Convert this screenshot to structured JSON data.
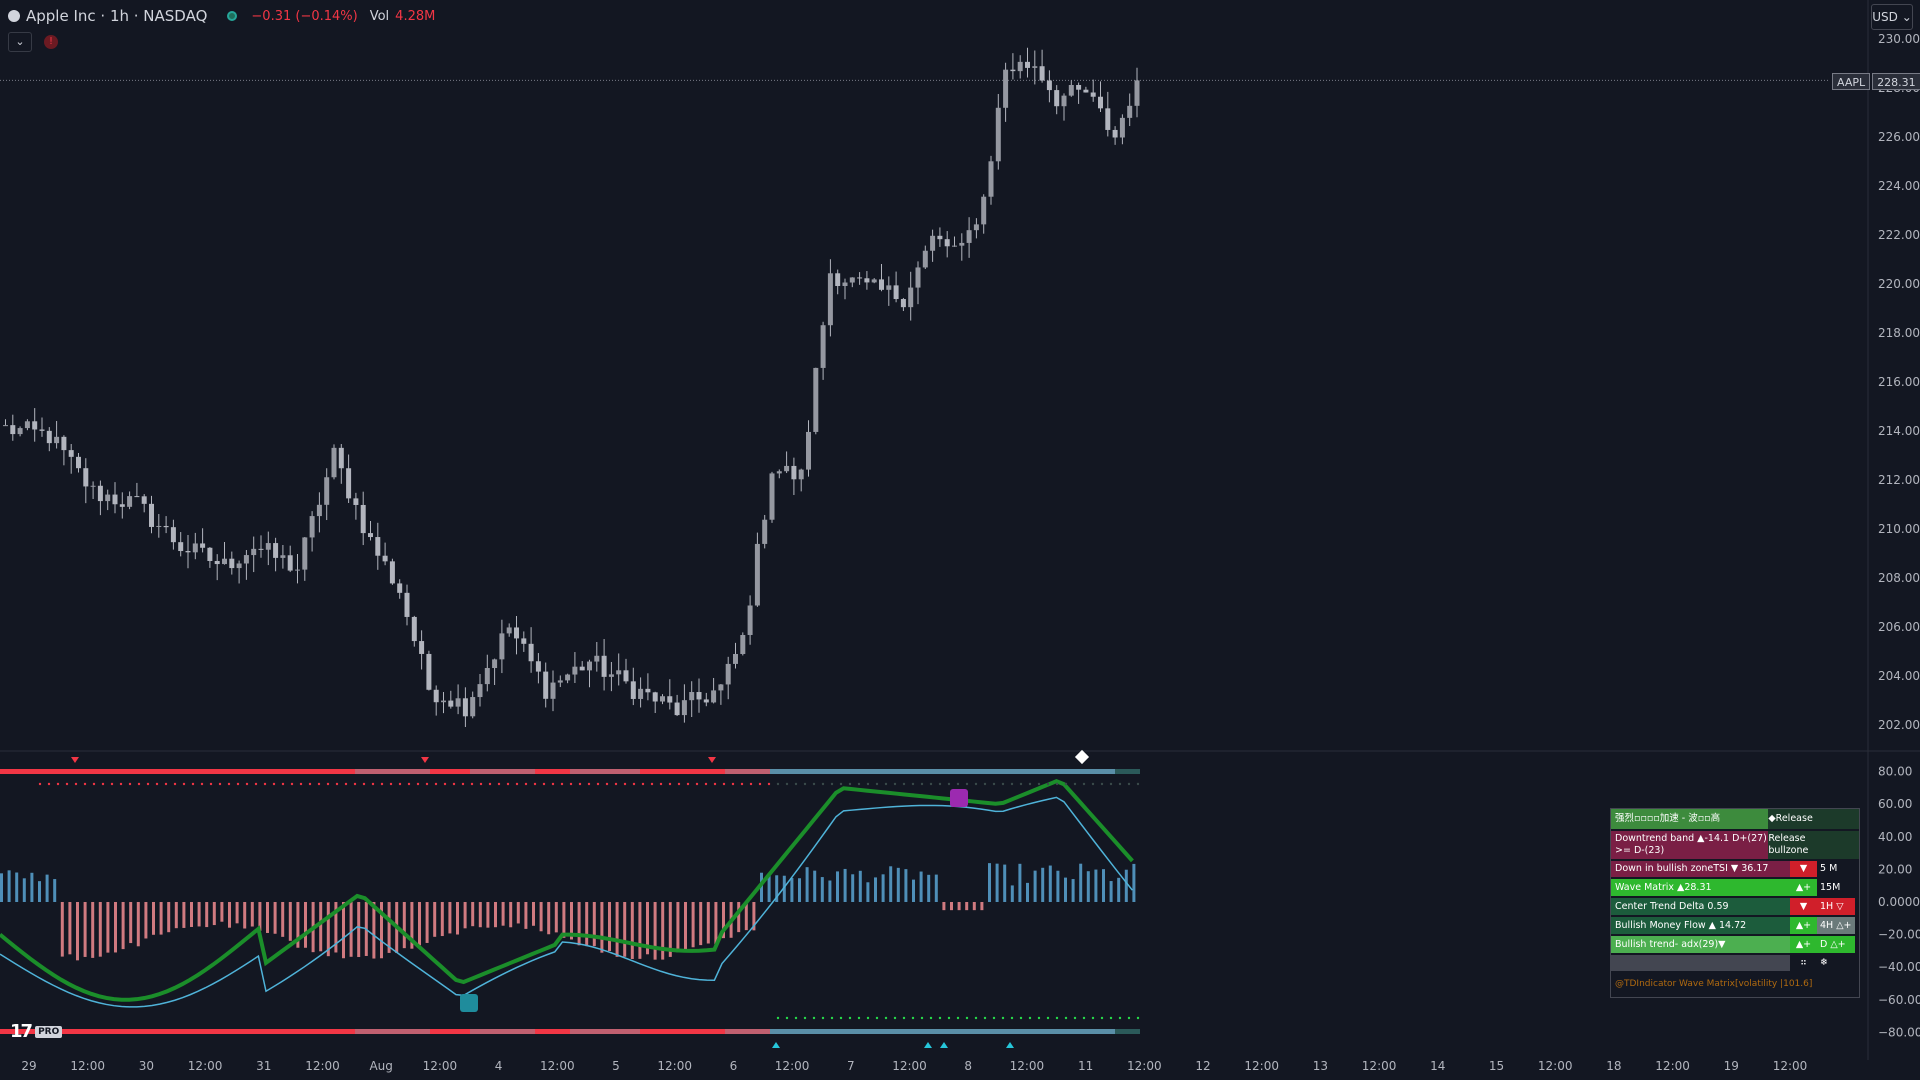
{
  "header": {
    "symbol": "Apple Inc · 1h · NASDAQ",
    "change": "−0.31 (−0.14%)",
    "vol_label": "Vol",
    "vol_value": "4.28M"
  },
  "controls": {
    "collapse_icon": "chevron-down-icon",
    "warning_icon": "!"
  },
  "currency": "USD ⌄",
  "last_price": {
    "ticker": "AAPL",
    "value": "228.31"
  },
  "logo": {
    "mark": "17",
    "badge": "PRO"
  },
  "chart_data": {
    "type": "candlestick",
    "title": "Apple Inc · 1h · NASDAQ",
    "price_axis": {
      "ticks": [
        "230.00",
        "228.00",
        "226.00",
        "224.00",
        "222.00",
        "220.00",
        "218.00",
        "216.00",
        "214.00",
        "212.00",
        "210.00",
        "208.00",
        "206.00",
        "204.00",
        "202.00"
      ],
      "range": [
        201.0,
        231.0
      ]
    },
    "oscillator_axis": {
      "ticks": [
        "80.00",
        "60.00",
        "40.00",
        "20.00",
        "0.0000",
        "−20.00",
        "−40.00",
        "−60.00",
        "−80.00"
      ],
      "range": [
        -90,
        90
      ]
    },
    "time_axis": {
      "ticks": [
        "29",
        "12:00",
        "30",
        "12:00",
        "31",
        "12:00",
        "Aug",
        "12:00",
        "4",
        "12:00",
        "5",
        "12:00",
        "6",
        "12:00",
        "7",
        "12:00",
        "8",
        "12:00",
        "11",
        "12:00",
        "12",
        "12:00",
        "13",
        "12:00",
        "14",
        "15",
        "12:00",
        "18",
        "12:00",
        "19",
        "12:00"
      ]
    },
    "anchors": [
      [
        0,
        214.1
      ],
      [
        6,
        213.8
      ],
      [
        12,
        211.5
      ],
      [
        18,
        211.0
      ],
      [
        24,
        209.3
      ],
      [
        30,
        208.5
      ],
      [
        34,
        209.3
      ],
      [
        40,
        208.4
      ],
      [
        45,
        213.0
      ],
      [
        50,
        209.5
      ],
      [
        54,
        207.5
      ],
      [
        58,
        203.5
      ],
      [
        63,
        202.8
      ],
      [
        69,
        206.0
      ],
      [
        74,
        203.5
      ],
      [
        80,
        204.6
      ],
      [
        86,
        203.5
      ],
      [
        92,
        202.6
      ],
      [
        98,
        203.5
      ],
      [
        101,
        205.5
      ],
      [
        105,
        212.5
      ],
      [
        109,
        212.1
      ],
      [
        113,
        220.5
      ],
      [
        118,
        219.8
      ],
      [
        123,
        219.5
      ],
      [
        127,
        221.8
      ],
      [
        131,
        221.3
      ],
      [
        134,
        223.5
      ],
      [
        137,
        228.8
      ],
      [
        141,
        229.0
      ],
      [
        144,
        227.6
      ],
      [
        148,
        227.8
      ],
      [
        152,
        226.0
      ],
      [
        155,
        228.4
      ]
    ],
    "last_close": 228.31,
    "table": {
      "rows": [
        {
          "a": "强烈▫▫▫▫加速 - 波▫▫高",
          "b": "◆Release",
          "c": ""
        },
        {
          "a": "Downtrend band ▲-14.1  D+(27) >= D-(23)",
          "b": "Release bullzone",
          "c": ""
        },
        {
          "a": "Down in bullish zoneTSI ▼ 36.17",
          "b": "▼",
          "c": "5 M"
        },
        {
          "a": "Wave Matrix ▲28.31",
          "b": "▲+",
          "c": "15M"
        },
        {
          "a": "Center Trend Delta  0.59",
          "b": "▼",
          "c": "1H ▽"
        },
        {
          "a": "Bullish Money Flow   ▲ 14.72",
          "b": "▲+",
          "c": "4H △+"
        },
        {
          "a": "Bullish trend- adx(29)▼",
          "b": "▲+",
          "c": "D △+"
        },
        {
          "a": "",
          "b": "⠶",
          "c": "❄"
        }
      ],
      "footer": "@TDIndicator Wave Matrix[volatility |101.6]"
    }
  },
  "colors": {
    "background": "#131722",
    "grid": "#1e222d",
    "candle": "#b2b5be",
    "bear": "#f23645",
    "bull": "#26a69a",
    "teal": "#5a8fa8",
    "wave_green": "#1b8e2a",
    "wave_red": "#c81e2a",
    "purple": "#8a2a5a"
  }
}
